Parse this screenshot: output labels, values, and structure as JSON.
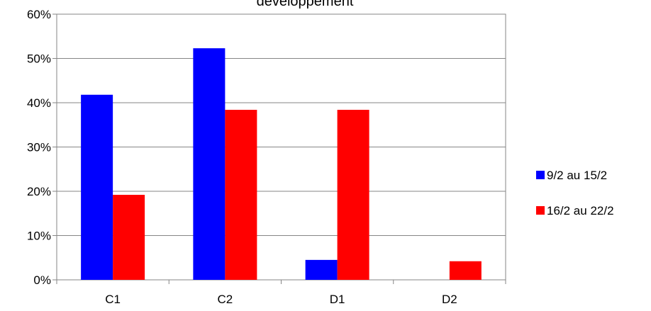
{
  "chart_data": {
    "type": "bar",
    "title": "développement",
    "categories": [
      "C1",
      "C2",
      "D1",
      "D2"
    ],
    "series": [
      {
        "name": "9/2 au 15/2",
        "color": "#0000FF",
        "values": [
          41.8,
          52.3,
          4.5,
          0
        ]
      },
      {
        "name": "16/2 au 22/2",
        "color": "#FF0000",
        "values": [
          19.2,
          38.4,
          38.4,
          4.2
        ]
      }
    ],
    "yticks": [
      "0%",
      "10%",
      "20%",
      "30%",
      "40%",
      "50%",
      "60%"
    ],
    "ylim": [
      0,
      60
    ],
    "grid": true,
    "legend": "right"
  }
}
